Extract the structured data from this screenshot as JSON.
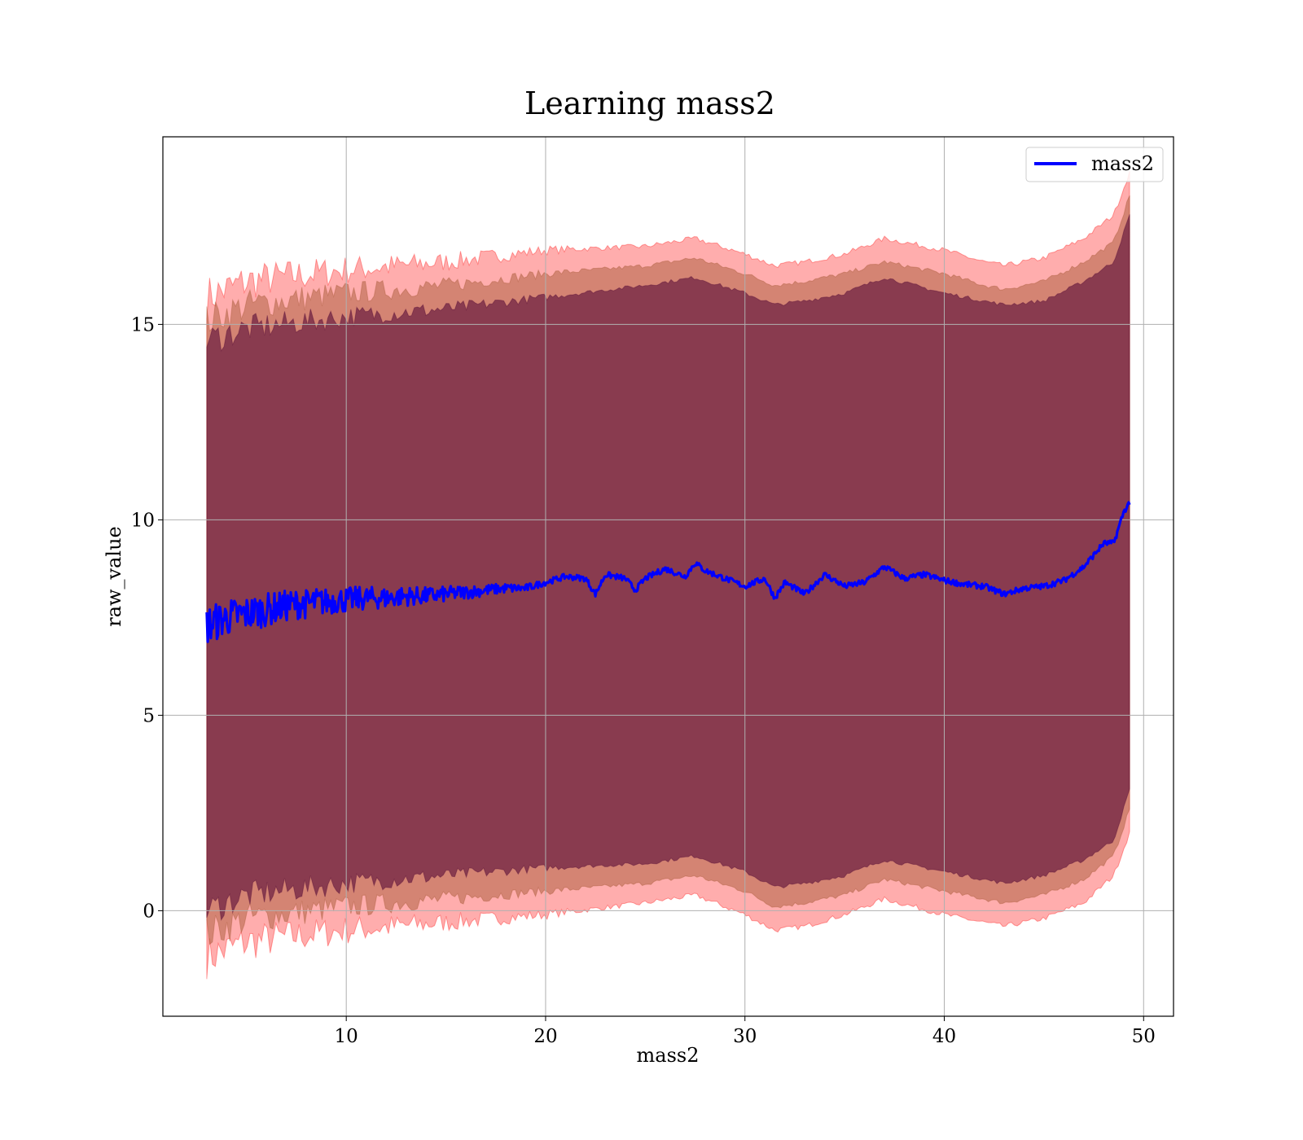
{
  "chart_data": {
    "type": "line",
    "title": "Learning mass2",
    "xlabel": "mass2",
    "ylabel": "raw_value",
    "xlim": [
      0.8,
      51.5
    ],
    "ylim": [
      -2.7,
      19.8
    ],
    "xticks": [
      10,
      20,
      30,
      40,
      50
    ],
    "yticks": [
      0,
      5,
      10,
      15
    ],
    "grid": true,
    "legend": {
      "placement": "top-right",
      "entries": [
        "mass2"
      ]
    },
    "colors": {
      "line": "#0000ff",
      "band_outer": "#ff0000",
      "band_middle": "#a0522d",
      "band_inner": "#4b0032"
    },
    "series": [
      {
        "name": "mass2",
        "x": [
          3.0,
          3.5,
          4.0,
          4.5,
          5.0,
          5.5,
          6.0,
          6.5,
          7.0,
          7.5,
          8.0,
          8.5,
          9.0,
          9.5,
          10.0,
          11.0,
          12.0,
          13.0,
          14.0,
          15.0,
          16.0,
          17.0,
          18.0,
          19.0,
          20.0,
          21.0,
          22.0,
          22.5,
          23.0,
          24.0,
          24.5,
          25.0,
          26.0,
          27.0,
          27.5,
          28.0,
          29.0,
          30.0,
          31.0,
          31.5,
          32.0,
          33.0,
          34.0,
          35.0,
          36.0,
          37.0,
          38.0,
          39.0,
          40.0,
          41.0,
          42.0,
          43.0,
          44.0,
          45.0,
          46.0,
          47.0,
          48.0,
          48.5,
          49.0,
          49.3
        ],
        "y": [
          7.3,
          7.4,
          7.5,
          7.55,
          7.6,
          7.65,
          7.7,
          7.75,
          7.8,
          7.85,
          7.85,
          7.9,
          7.9,
          7.95,
          7.95,
          8.0,
          8.0,
          8.05,
          8.05,
          8.1,
          8.15,
          8.2,
          8.25,
          8.25,
          8.4,
          8.55,
          8.5,
          8.1,
          8.6,
          8.5,
          8.2,
          8.5,
          8.75,
          8.55,
          8.9,
          8.7,
          8.5,
          8.3,
          8.5,
          8.0,
          8.4,
          8.1,
          8.6,
          8.3,
          8.4,
          8.8,
          8.5,
          8.6,
          8.45,
          8.35,
          8.3,
          8.1,
          8.25,
          8.3,
          8.45,
          8.8,
          9.4,
          9.4,
          10.2,
          10.45
        ],
        "noise": 0.5
      }
    ],
    "bands": {
      "x": [
        3.0,
        5.0,
        10.0,
        15.0,
        20.0,
        25.0,
        27.5,
        30.0,
        31.5,
        33.0,
        35.0,
        37.0,
        40.0,
        42.0,
        43.0,
        45.0,
        47.0,
        48.5,
        49.3
      ],
      "outer_upper": [
        15.7,
        16.1,
        16.4,
        16.6,
        16.9,
        17.0,
        17.2,
        16.8,
        16.5,
        16.6,
        16.8,
        17.2,
        16.9,
        16.6,
        16.5,
        16.7,
        17.2,
        17.8,
        18.9
      ],
      "middle_upper": [
        15.1,
        15.5,
        15.8,
        16.0,
        16.3,
        16.5,
        16.7,
        16.3,
        16.0,
        16.1,
        16.3,
        16.6,
        16.3,
        16.0,
        15.9,
        16.1,
        16.6,
        17.1,
        18.3
      ],
      "inner_upper": [
        14.6,
        14.9,
        15.2,
        15.4,
        15.7,
        16.0,
        16.2,
        15.8,
        15.5,
        15.6,
        15.8,
        16.2,
        15.8,
        15.6,
        15.5,
        15.6,
        16.1,
        16.6,
        17.8
      ],
      "inner_lower": [
        0.0,
        0.4,
        0.7,
        0.9,
        1.1,
        1.2,
        1.4,
        1.0,
        0.6,
        0.7,
        0.9,
        1.3,
        1.0,
        0.8,
        0.7,
        0.9,
        1.3,
        1.8,
        3.1
      ],
      "middle_lower": [
        -0.6,
        -0.2,
        0.1,
        0.3,
        0.5,
        0.7,
        0.9,
        0.5,
        0.1,
        0.2,
        0.4,
        0.8,
        0.5,
        0.3,
        0.2,
        0.4,
        0.8,
        1.4,
        2.6
      ],
      "outer_lower": [
        -1.2,
        -0.8,
        -0.5,
        -0.3,
        -0.1,
        0.2,
        0.4,
        -0.1,
        -0.5,
        -0.4,
        -0.1,
        0.3,
        -0.1,
        -0.3,
        -0.4,
        -0.2,
        0.2,
        0.9,
        2.0
      ]
    }
  }
}
